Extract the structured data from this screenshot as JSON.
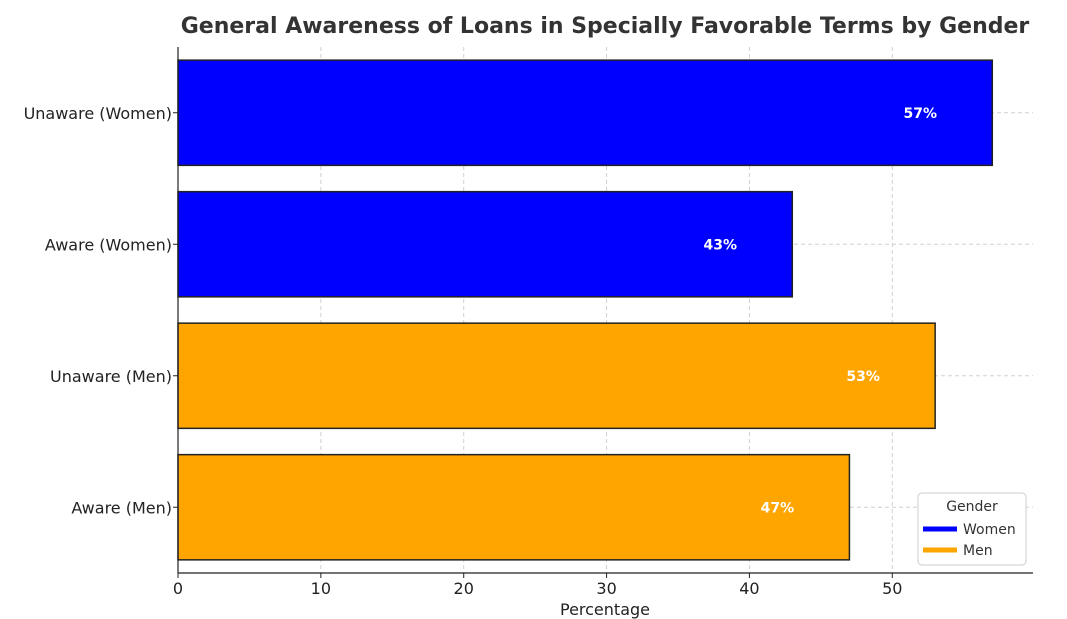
{
  "chart_data": {
    "type": "bar",
    "orientation": "horizontal",
    "title": "General Awareness of Loans in Specially Favorable Terms by Gender",
    "xlabel": "Percentage",
    "ylabel": "",
    "xlim": [
      0,
      59.85
    ],
    "xticks": [
      "0",
      "10",
      "20",
      "30",
      "40",
      "50"
    ],
    "grid": true,
    "legend": {
      "title": "Gender",
      "placement": "lower-right",
      "entries": [
        {
          "label": "Women",
          "color": "#0000ff"
        },
        {
          "label": "Men",
          "color": "#ffa500"
        }
      ]
    },
    "bars": [
      {
        "category": "Unaware (Women)",
        "value": 57,
        "label": "57%",
        "group": "Women",
        "color": "#0000ff"
      },
      {
        "category": "Aware (Women)",
        "value": 43,
        "label": "43%",
        "group": "Women",
        "color": "#0000ff"
      },
      {
        "category": "Unaware (Men)",
        "value": 53,
        "label": "53%",
        "group": "Men",
        "color": "#ffa500"
      },
      {
        "category": "Aware (Men)",
        "value": 47,
        "label": "47%",
        "group": "Men",
        "color": "#ffa500"
      }
    ]
  }
}
